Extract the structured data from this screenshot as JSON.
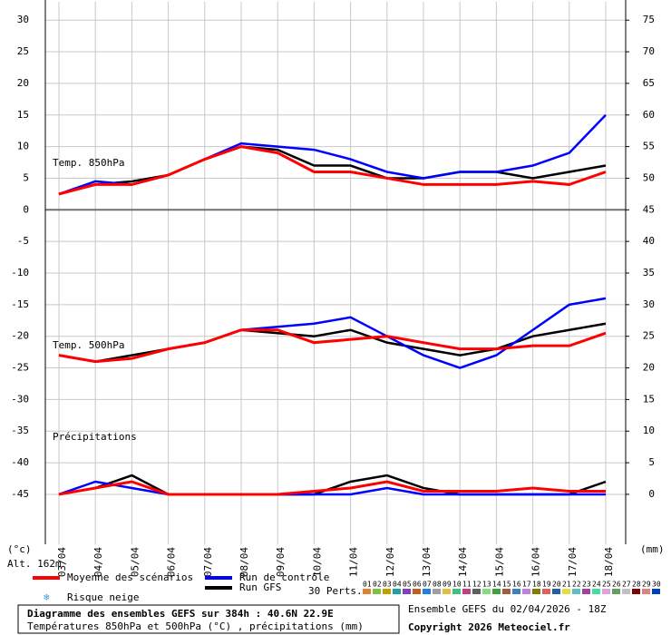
{
  "chart_data": {
    "type": "line",
    "x": [
      "03/04",
      "04/04",
      "05/04",
      "06/04",
      "07/04",
      "08/04",
      "09/04",
      "10/04",
      "11/04",
      "12/04",
      "13/04",
      "14/04",
      "15/04",
      "16/04",
      "17/04",
      "18/04"
    ],
    "ylim": [
      -52.9,
      32.9
    ],
    "yticks": [
      -45,
      -40,
      -35,
      -30,
      -25,
      -20,
      -15,
      -10,
      -5,
      0,
      5,
      10,
      15,
      20,
      25,
      30
    ],
    "y2lim": [
      -7.9,
      77.9
    ],
    "y2ticks": [
      0,
      5,
      10,
      15,
      20,
      25,
      30,
      35,
      40,
      45,
      50,
      55,
      60,
      65,
      70,
      75
    ],
    "y_unit": "(°c)",
    "y2_unit": "(mm)",
    "altitude": "Alt. 162m",
    "grid": true,
    "panels": [
      {
        "label": "Temp. 850hPa",
        "series": [
          {
            "name": "Moyenne des scénarios",
            "color": "#ff0000",
            "values": [
              2.5,
              4,
              4,
              5.5,
              8,
              10,
              9,
              6,
              6,
              5,
              4,
              4,
              4,
              4.5,
              4,
              6
            ]
          },
          {
            "name": "Run de contrôle",
            "color": "#0000ff",
            "values": [
              2.5,
              4.5,
              4,
              5.5,
              8,
              10.5,
              10,
              9.5,
              8,
              6,
              5,
              6,
              6,
              7,
              9,
              15
            ]
          },
          {
            "name": "Run GFS",
            "color": "#000000",
            "values": [
              2.5,
              4,
              4.5,
              5.5,
              8,
              10,
              9.5,
              7,
              7,
              5,
              5,
              6,
              6,
              5,
              6,
              7
            ]
          }
        ]
      },
      {
        "label": "Temp. 500hPa",
        "series": [
          {
            "name": "Moyenne des scénarios",
            "color": "#ff0000",
            "values": [
              -23,
              -24,
              -23.5,
              -22,
              -21,
              -19,
              -19,
              -21,
              -20.5,
              -20,
              -21,
              -22,
              -22,
              -21.5,
              -21.5,
              -19.5
            ]
          },
          {
            "name": "Run de contrôle",
            "color": "#0000ff",
            "values": [
              -23,
              -24,
              -23.5,
              -22,
              -21,
              -19,
              -18.5,
              -18,
              -17,
              -20,
              -23,
              -25,
              -23,
              -19,
              -15,
              -14
            ]
          },
          {
            "name": "Run GFS",
            "color": "#000000",
            "values": [
              -23,
              -24,
              -23,
              -22,
              -21,
              -19,
              -19.5,
              -20,
              -19,
              -21,
              -22,
              -23,
              -22,
              -20,
              -19,
              -18
            ]
          }
        ]
      },
      {
        "label": "Précipitations",
        "axis": "y2",
        "series": [
          {
            "name": "Moyenne des scénarios",
            "color": "#ff0000",
            "values": [
              0,
              1,
              2,
              0,
              0,
              0,
              0,
              0.5,
              1,
              2,
              0.5,
              0.5,
              0.5,
              1,
              0.5,
              0.5
            ]
          },
          {
            "name": "Run de contrôle",
            "color": "#0000ff",
            "values": [
              0,
              2,
              1,
              0,
              0,
              0,
              0,
              0,
              0,
              1,
              0,
              0,
              0,
              0,
              0,
              0
            ]
          },
          {
            "name": "Run GFS",
            "color": "#000000",
            "values": [
              0,
              1,
              3,
              0,
              0,
              0,
              0,
              0,
              2,
              3,
              1,
              0,
              0,
              0,
              0,
              2
            ]
          }
        ]
      }
    ],
    "snow_label": "Risque neige",
    "perturbations": {
      "label": "30 Perts.",
      "numbers": [
        "01",
        "02",
        "03",
        "04",
        "05",
        "06",
        "07",
        "08",
        "09",
        "10",
        "11",
        "12",
        "13",
        "14",
        "15",
        "16",
        "17",
        "18",
        "19",
        "20",
        "21",
        "22",
        "23",
        "24",
        "25",
        "26",
        "27",
        "28",
        "29",
        "30"
      ],
      "colors": [
        "#e08030",
        "#80c040",
        "#c0a000",
        "#20a0a0",
        "#8040c0",
        "#c06020",
        "#2080e0",
        "#a0a0a0",
        "#e0c040",
        "#40c080",
        "#c04080",
        "#606060",
        "#80e080",
        "#40a040",
        "#a06040",
        "#4080c0",
        "#c080e0",
        "#808000",
        "#e06060",
        "#2060a0",
        "#e0e040",
        "#60c0c0",
        "#a040a0",
        "#40e0a0",
        "#e0a0e0",
        "#60a060",
        "#c0c0c0",
        "#800000",
        "#e08080",
        "#0040c0"
      ]
    },
    "footer": {
      "title": "Diagramme des ensembles GEFS sur 384h : 40.6N 22.9E",
      "subtitle": "Températures 850hPa et 500hPa (°C) , précipitations (mm)",
      "run": "Ensemble GEFS du 02/04/2026 - 18Z",
      "copyright": "Copyright 2026 Meteociel.fr"
    }
  }
}
